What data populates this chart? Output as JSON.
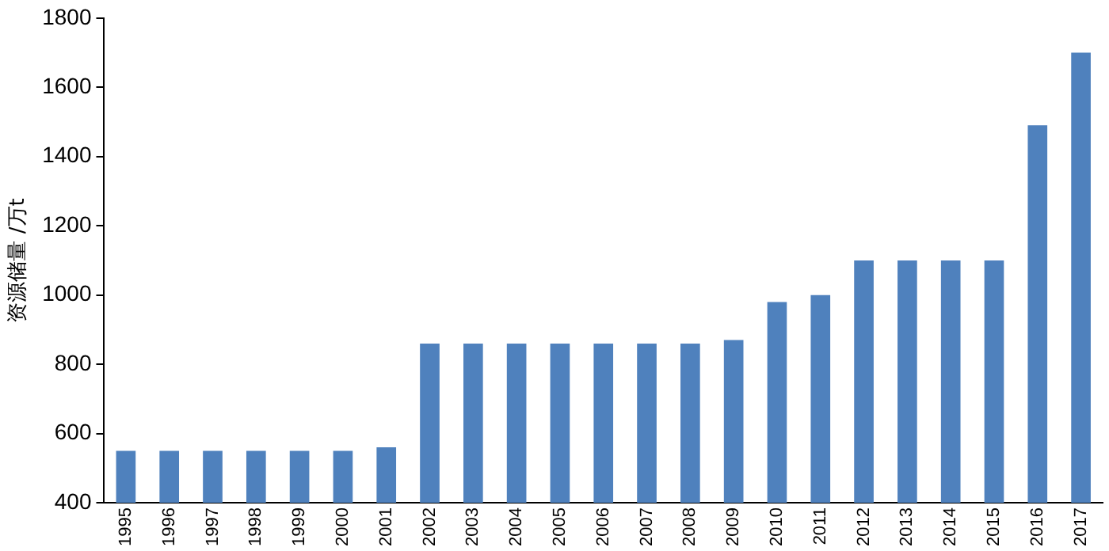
{
  "chart_data": {
    "type": "bar",
    "ylabel": "资源储量 /万t",
    "categories": [
      "1995",
      "1996",
      "1997",
      "1998",
      "1999",
      "2000",
      "2001",
      "2002",
      "2003",
      "2004",
      "2005",
      "2006",
      "2007",
      "2008",
      "2009",
      "2010",
      "2011",
      "2012",
      "2013",
      "2014",
      "2015",
      "2016",
      "2017"
    ],
    "values": [
      550,
      550,
      550,
      550,
      550,
      550,
      560,
      860,
      860,
      860,
      860,
      860,
      860,
      860,
      870,
      980,
      1000,
      1100,
      1100,
      1100,
      1100,
      1490,
      1700
    ],
    "color": "#4f81bd",
    "ylim": [
      400,
      1800
    ],
    "yticks": [
      400,
      600,
      800,
      1000,
      1200,
      1400,
      1600,
      1800
    ],
    "grid": false
  }
}
